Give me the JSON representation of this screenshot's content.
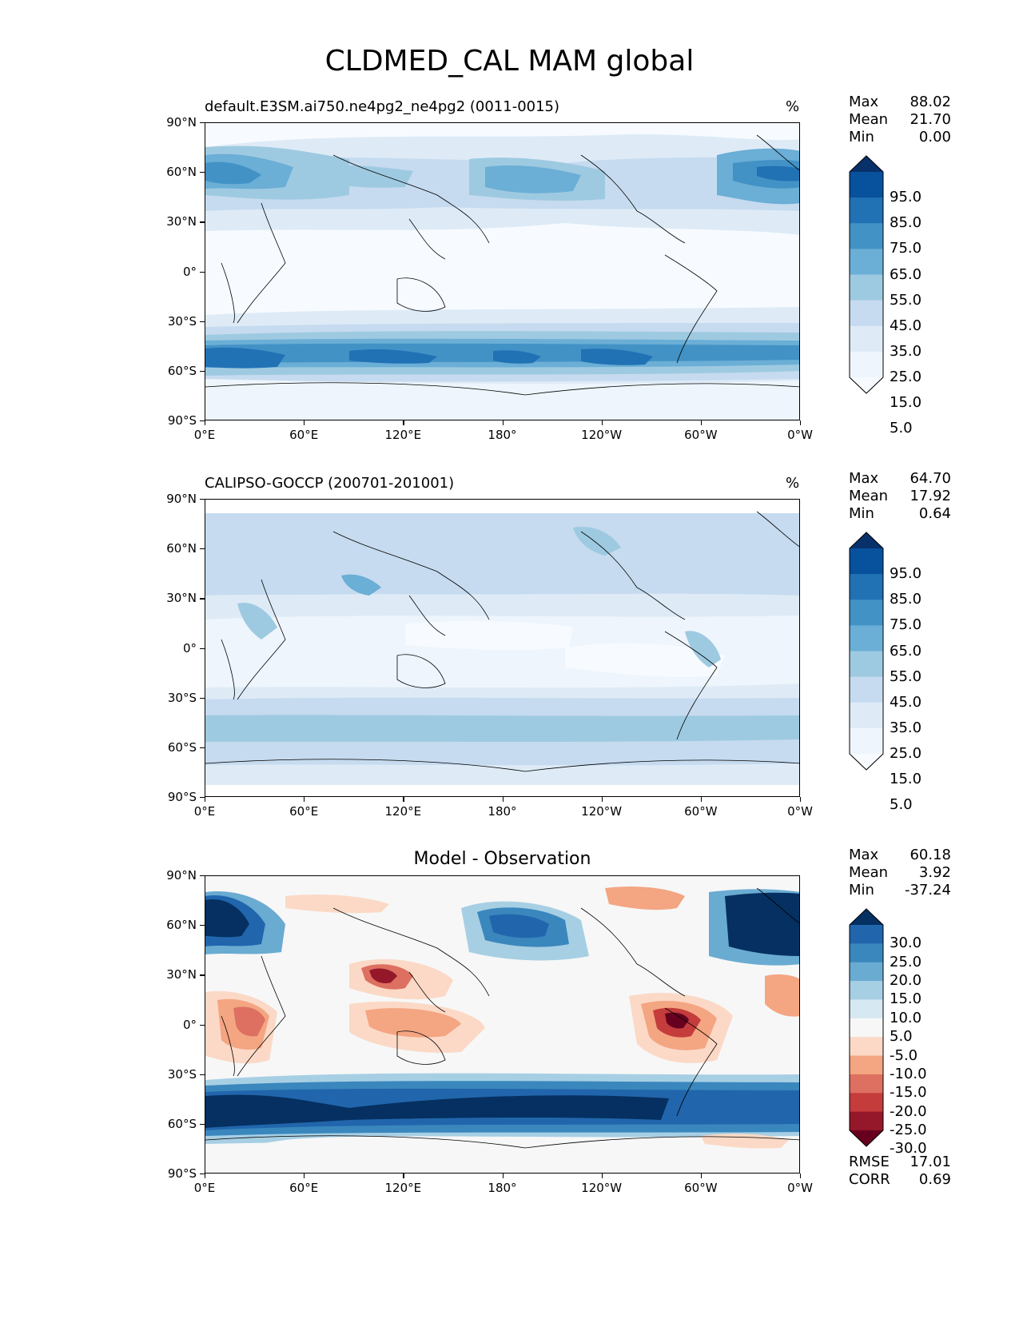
{
  "figure_title": "CLDMED_CAL MAM global",
  "x_ticks": [
    "0°E",
    "60°E",
    "120°E",
    "180°",
    "120°W",
    "60°W",
    "0°W"
  ],
  "y_ticks": [
    "90°N",
    "60°N",
    "30°N",
    "0°",
    "30°S",
    "60°S",
    "90°S"
  ],
  "chart_data": [
    {
      "type": "heatmap",
      "title": "default.E3SM.ai750.ne4pg2_ne4pg2 (0011-0015)",
      "units": "%",
      "stats": [
        {
          "label": "Max",
          "value": "88.02"
        },
        {
          "label": "Mean",
          "value": "21.70"
        },
        {
          "label": "Min",
          "value": "0.00"
        }
      ],
      "colorbar_labels": [
        "95.0",
        "85.0",
        "75.0",
        "65.0",
        "55.0",
        "45.0",
        "35.0",
        "25.0",
        "15.0",
        "5.0"
      ],
      "colors": [
        "#08306b",
        "#08519c",
        "#2171b5",
        "#4292c6",
        "#6baed6",
        "#9ecae1",
        "#c6dbef",
        "#deebf7",
        "#eef5fc",
        "#f7fbff"
      ]
    },
    {
      "type": "heatmap",
      "title": "CALIPSO-GOCCP (200701-201001)",
      "units": "%",
      "stats": [
        {
          "label": "Max",
          "value": "64.70"
        },
        {
          "label": "Mean",
          "value": "17.92"
        },
        {
          "label": "Min",
          "value": "0.64"
        }
      ],
      "colorbar_labels": [
        "95.0",
        "85.0",
        "75.0",
        "65.0",
        "55.0",
        "45.0",
        "35.0",
        "25.0",
        "15.0",
        "5.0"
      ],
      "colors": [
        "#08306b",
        "#08519c",
        "#2171b5",
        "#4292c6",
        "#6baed6",
        "#9ecae1",
        "#c6dbef",
        "#deebf7",
        "#eef5fc",
        "#f7fbff"
      ]
    },
    {
      "type": "heatmap",
      "title": "Model - Observation",
      "stats": [
        {
          "label": "Max",
          "value": "60.18"
        },
        {
          "label": "Mean",
          "value": "3.92"
        },
        {
          "label": "Min",
          "value": "-37.24"
        }
      ],
      "colorbar_labels": [
        "30.0",
        "25.0",
        "20.0",
        "15.0",
        "10.0",
        "5.0",
        "-5.0",
        "-10.0",
        "-15.0",
        "-20.0",
        "-25.0",
        "-30.0"
      ],
      "colors": [
        "#053061",
        "#2166ac",
        "#3a87bd",
        "#6aabd2",
        "#a7cfe4",
        "#d6e8f1",
        "#f7f7f7",
        "#fbd9c6",
        "#f4a582",
        "#dd7060",
        "#c43c3c",
        "#94172a",
        "#67001f"
      ],
      "metrics": [
        {
          "label": "RMSE",
          "value": "17.01"
        },
        {
          "label": "CORR",
          "value": "0.69"
        }
      ]
    }
  ]
}
